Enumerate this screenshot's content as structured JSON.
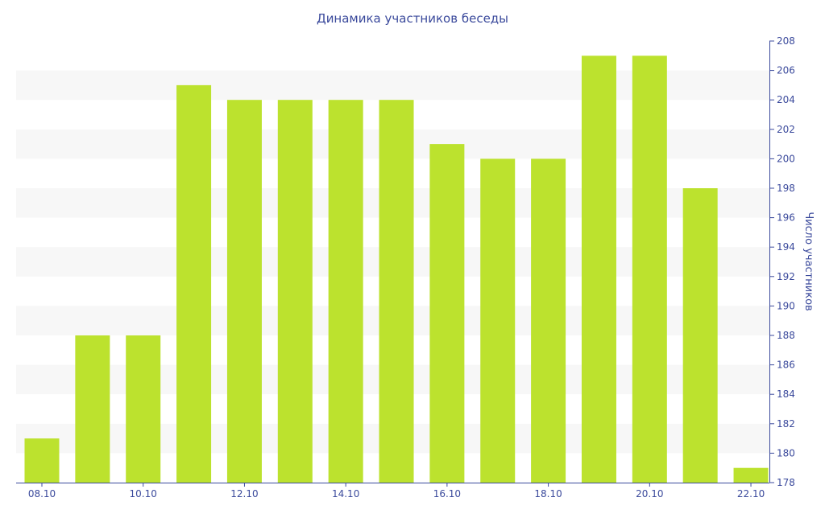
{
  "chart_data": {
    "type": "bar",
    "title": "Динамика участников беседы",
    "xlabel": "",
    "ylabel": "Число участников",
    "categories": [
      "08.10",
      "09.10",
      "10.10",
      "11.10",
      "12.10",
      "13.10",
      "14.10",
      "15.10",
      "16.10",
      "17.10",
      "18.10",
      "19.10",
      "20.10",
      "21.10",
      "22.10"
    ],
    "x_tick_labels": [
      "08.10",
      "",
      "10.10",
      "",
      "12.10",
      "",
      "14.10",
      "",
      "16.10",
      "",
      "18.10",
      "",
      "20.10",
      "",
      "22.10"
    ],
    "values": [
      181,
      188,
      188,
      205,
      204,
      204,
      204,
      204,
      201,
      200,
      200,
      207,
      207,
      198,
      179
    ],
    "ylim": [
      178,
      208
    ],
    "y_ticks": [
      178,
      180,
      182,
      184,
      186,
      188,
      190,
      192,
      194,
      196,
      198,
      200,
      202,
      204,
      206,
      208
    ],
    "y_axis_side": "right",
    "grid": "horizontal bands",
    "legend": "none",
    "colors": {
      "bar": "#bce22e",
      "band": "#f7f7f7",
      "axis": "#3b4a9c",
      "text": "#3b4a9c"
    }
  }
}
